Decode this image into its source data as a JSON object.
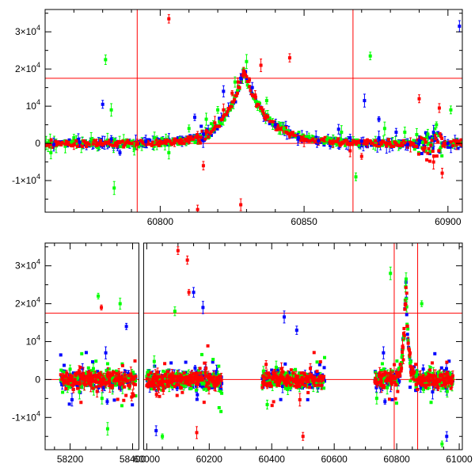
{
  "chart_data": [
    {
      "type": "scatter",
      "title": "",
      "xlabel": "",
      "ylabel": "",
      "xlim": [
        60760,
        60905
      ],
      "ylim": [
        -18500,
        36000
      ],
      "x_ticks": [
        {
          "value": 60800,
          "label": "60800"
        },
        {
          "value": 60850,
          "label": "60850"
        },
        {
          "value": 60900,
          "label": "60900"
        }
      ],
      "y_ticks": [
        {
          "value": 30000,
          "base": "3×10",
          "exp": "4"
        },
        {
          "value": 20000,
          "base": "2×10",
          "exp": "4"
        },
        {
          "value": 10000,
          "base": "10",
          "exp": "4"
        },
        {
          "value": 0,
          "base": "0",
          "exp": ""
        },
        {
          "value": -10000,
          "base": "-1×10",
          "exp": "4"
        }
      ],
      "reference_lines": {
        "horizontal": [
          0,
          17500
        ],
        "vertical": [
          60792,
          60867
        ]
      },
      "series": [
        {
          "name": "red",
          "color": "#ff0000",
          "points": [
            [
              60762,
              -600
            ],
            [
              60770,
              -300
            ],
            [
              60778,
              100
            ],
            [
              60785,
              -500
            ],
            [
              60792,
              -300
            ],
            [
              60800,
              0
            ],
            [
              60805,
              200
            ],
            [
              60810,
              500
            ],
            [
              60813,
              1500
            ],
            [
              60816,
              3000
            ],
            [
              60819,
              5500
            ],
            [
              60822,
              9000
            ],
            [
              60825,
              13500
            ],
            [
              60827,
              16500
            ],
            [
              60829,
              19500
            ],
            [
              60831,
              17000
            ],
            [
              60833,
              13000
            ],
            [
              60836,
              8000
            ],
            [
              60840,
              4500
            ],
            [
              60845,
              2000
            ],
            [
              60850,
              700
            ],
            [
              60855,
              300
            ],
            [
              60860,
              0
            ],
            [
              60866,
              -200
            ],
            [
              60872,
              100
            ],
            [
              60880,
              -300
            ],
            [
              60887,
              -400
            ],
            [
              60892,
              -1200
            ],
            [
              60895,
              -5000
            ],
            [
              60897,
              9500
            ],
            [
              60899,
              -200
            ],
            [
              60903,
              -300
            ],
            [
              60803,
              33500
            ],
            [
              60815,
              -6000
            ],
            [
              60813,
              -17800
            ],
            [
              60828,
              -16500
            ],
            [
              60835,
              21000
            ],
            [
              60845,
              23000
            ],
            [
              60866,
              -2000
            ],
            [
              60870,
              -3500
            ],
            [
              60898,
              -8000
            ],
            [
              60890,
              12000
            ]
          ]
        },
        {
          "name": "blue",
          "color": "#0000ff",
          "points": [
            [
              60763,
              -300
            ],
            [
              60772,
              300
            ],
            [
              60780,
              10500
            ],
            [
              60783,
              1200
            ],
            [
              60786,
              -2500
            ],
            [
              60795,
              500
            ],
            [
              60812,
              7000
            ],
            [
              60815,
              2500
            ],
            [
              60822,
              14000
            ],
            [
              60828,
              17500
            ],
            [
              60832,
              15000
            ],
            [
              60840,
              5000
            ],
            [
              60848,
              1500
            ],
            [
              60855,
              700
            ],
            [
              60862,
              3800
            ],
            [
              60866,
              1500
            ],
            [
              60870,
              600
            ],
            [
              60876,
              1500
            ],
            [
              60882,
              3000
            ],
            [
              60886,
              -300
            ],
            [
              60890,
              700
            ],
            [
              60895,
              3000
            ],
            [
              60900,
              0
            ],
            [
              60904,
              31500
            ],
            [
              60871,
              11500
            ],
            [
              60876,
              6500
            ]
          ]
        },
        {
          "name": "green",
          "color": "#00ff00",
          "points": [
            [
              60762,
              -2500
            ],
            [
              60770,
              1500
            ],
            [
              60776,
              1000
            ],
            [
              60781,
              22500
            ],
            [
              60783,
              9000
            ],
            [
              60784,
              -12000
            ],
            [
              60791,
              -1500
            ],
            [
              60798,
              1500
            ],
            [
              60803,
              -2500
            ],
            [
              60810,
              4000
            ],
            [
              60816,
              6500
            ],
            [
              60820,
              9000
            ],
            [
              60826,
              16500
            ],
            [
              60830,
              22000
            ],
            [
              60837,
              11500
            ],
            [
              60843,
              4000
            ],
            [
              60858,
              1000
            ],
            [
              60863,
              3000
            ],
            [
              60868,
              -9000
            ],
            [
              60873,
              23500
            ],
            [
              60878,
              4000
            ],
            [
              60885,
              3000
            ],
            [
              60893,
              2500
            ],
            [
              60896,
              5000
            ],
            [
              60901,
              9000
            ]
          ]
        }
      ]
    },
    {
      "type": "scatter",
      "title": "",
      "xlabel": "",
      "ylabel": "",
      "axis_break": {
        "from": 58420,
        "to": 59990
      },
      "xlim": [
        58120,
        61010
      ],
      "ylim": [
        -18500,
        36000
      ],
      "x_ticks": [
        {
          "value": 58200,
          "label": "58200"
        },
        {
          "value": 58400,
          "label": "58400"
        },
        {
          "value": 60000,
          "label": "60000"
        },
        {
          "value": 60200,
          "label": "60200"
        },
        {
          "value": 60400,
          "label": "60400"
        },
        {
          "value": 60600,
          "label": "60600"
        },
        {
          "value": 60800,
          "label": "60800"
        },
        {
          "value": 61000,
          "label": "61000"
        }
      ],
      "y_ticks": [
        {
          "value": 30000,
          "base": "3×10",
          "exp": "4"
        },
        {
          "value": 20000,
          "base": "2×10",
          "exp": "4"
        },
        {
          "value": 10000,
          "base": "10",
          "exp": "4"
        },
        {
          "value": 0,
          "base": "0",
          "exp": ""
        },
        {
          "value": -10000,
          "base": "-1×10",
          "exp": "4"
        }
      ],
      "reference_lines": {
        "horizontal": [
          0,
          17500
        ],
        "vertical": [
          60792,
          60867
        ]
      },
      "observing_seasons": [
        [
          58170,
          58410
        ],
        [
          60000,
          60240
        ],
        [
          60370,
          60570
        ],
        [
          60730,
          60980
        ]
      ],
      "flare": {
        "peak_time": 60829,
        "peak_value": 26000,
        "width": 8
      },
      "outliers": [
        {
          "series": "red",
          "points": [
            [
              60100,
              34000
            ],
            [
              60130,
              31500
            ],
            [
              58300,
              19000
            ],
            [
              60135,
              23000
            ],
            [
              60500,
              -15000
            ],
            [
              60160,
              -14000
            ]
          ]
        },
        {
          "series": "blue",
          "points": [
            [
              60150,
              23000
            ],
            [
              60180,
              19000
            ],
            [
              60440,
              16500
            ],
            [
              58380,
              14000
            ],
            [
              60030,
              -13500
            ],
            [
              60480,
              13000
            ],
            [
              60960,
              -15000
            ]
          ]
        },
        {
          "series": "green",
          "points": [
            [
              58290,
              22000
            ],
            [
              58360,
              20000
            ],
            [
              60880,
              20000
            ],
            [
              60830,
              26500
            ],
            [
              60780,
              28000
            ],
            [
              58320,
              -13000
            ],
            [
              60090,
              18000
            ],
            [
              60945,
              -17000
            ],
            [
              60050,
              -15000
            ]
          ]
        }
      ]
    }
  ]
}
